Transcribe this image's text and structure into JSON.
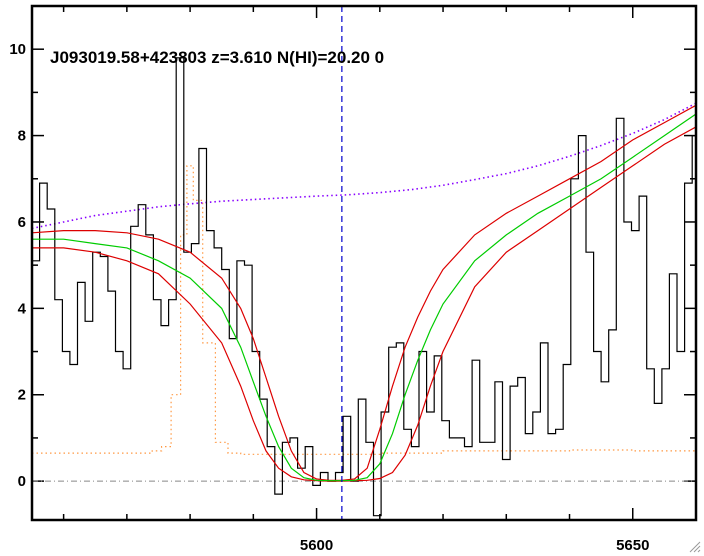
{
  "chart_data": {
    "type": "line",
    "title": "J093019.58+423803 z=3.610 N(HI)=20.20 0",
    "xlabel": "",
    "ylabel": "",
    "xlim": [
      5555,
      5660
    ],
    "ylim": [
      -0.9,
      11.0
    ],
    "x_ticks": [
      5600,
      5650
    ],
    "y_ticks": [
      0,
      2,
      4,
      6,
      8,
      10
    ],
    "vertical_marker_x": 5604,
    "zero_line_y": 0,
    "colors": {
      "flux": "#000000",
      "model": "#00cc00",
      "model_bounds": "#dd0000",
      "continuum": "#8800ff",
      "error": "#ff9944",
      "marker": "#0000cc",
      "zero_line": "#888888"
    },
    "series": [
      {
        "type": "step",
        "x": [
          5555.0,
          5556.2,
          5557.4,
          5558.6,
          5559.8,
          5561.0,
          5562.2,
          5563.4,
          5564.6,
          5565.8,
          5567.0,
          5568.2,
          5569.4,
          5570.6,
          5571.8,
          5573.0,
          5574.2,
          5575.4,
          5576.6,
          5577.8,
          5579.0,
          5580.2,
          5581.4,
          5582.6,
          5583.8,
          5585.0,
          5586.2,
          5587.4,
          5588.6,
          5589.8,
          5591.0,
          5592.2,
          5593.4,
          5594.6,
          5595.8,
          5597.0,
          5598.2,
          5599.4,
          5600.6,
          5601.8,
          5603.0,
          5604.2,
          5605.4,
          5606.6,
          5607.8,
          5609.0,
          5610.2,
          5611.4,
          5612.6,
          5613.8,
          5615.0,
          5616.2,
          5617.4,
          5618.6,
          5619.8,
          5621.0,
          5622.2,
          5623.4,
          5624.6,
          5625.8,
          5627.0,
          5628.2,
          5629.4,
          5630.6,
          5631.8,
          5633.0,
          5634.2,
          5635.4,
          5636.6,
          5637.8,
          5639.0,
          5640.2,
          5641.4,
          5642.6,
          5643.8,
          5645.0,
          5646.2,
          5647.4,
          5648.6,
          5649.8,
          5651.0,
          5652.2,
          5653.4,
          5654.6,
          5655.8,
          5657.0,
          5658.2,
          5659.4
        ],
        "values": [
          5.1,
          6.9,
          6.3,
          4.2,
          3.0,
          2.7,
          4.6,
          3.7,
          5.3,
          5.2,
          4.4,
          3.0,
          2.6,
          5.9,
          6.4,
          5.7,
          4.2,
          3.6,
          4.2,
          9.8,
          5.3,
          5.5,
          7.7,
          5.8,
          5.4,
          4.9,
          3.3,
          5.1,
          5.0,
          3.0,
          1.9,
          0.8,
          -0.3,
          0.9,
          1.0,
          0.3,
          0.8,
          -0.1,
          0.2,
          0.0,
          0.2,
          1.5,
          0.0,
          1.9,
          0.9,
          -0.8,
          1.6,
          3.1,
          3.2,
          1.2,
          0.8,
          3.0,
          1.6,
          2.9,
          1.4,
          1.0,
          1.0,
          0.8,
          2.8,
          0.9,
          0.9,
          2.3,
          0.5,
          2.2,
          2.4,
          1.1,
          1.6,
          3.2,
          1.1,
          1.2,
          2.7,
          7.0,
          8.0,
          5.3,
          3.0,
          2.3,
          3.5,
          8.4,
          6.0,
          5.8,
          6.6,
          2.6,
          1.8,
          2.6,
          4.8,
          3.0,
          6.9,
          8.0
        ]
      },
      {
        "type": "line",
        "x": [
          5555,
          5560,
          5565,
          5570,
          5575,
          5580,
          5585,
          5588,
          5590,
          5592,
          5594,
          5596,
          5598,
          5600,
          5602,
          5604,
          5606,
          5608,
          5610,
          5612,
          5614,
          5616,
          5618,
          5620,
          5625,
          5630,
          5635,
          5640,
          5645,
          5650,
          5655,
          5660
        ],
        "values": [
          5.6,
          5.6,
          5.5,
          5.4,
          5.1,
          4.7,
          4.0,
          3.1,
          2.3,
          1.5,
          0.8,
          0.3,
          0.08,
          0.02,
          0.01,
          0.01,
          0.02,
          0.08,
          0.4,
          1.1,
          2.0,
          2.8,
          3.5,
          4.1,
          5.1,
          5.7,
          6.2,
          6.6,
          7.0,
          7.5,
          8.0,
          8.5
        ]
      },
      {
        "type": "line",
        "x": [
          5555,
          5560,
          5565,
          5570,
          5575,
          5580,
          5585,
          5588,
          5590,
          5592,
          5594,
          5596,
          5598,
          5600,
          5602,
          5604,
          5606,
          5608,
          5610,
          5612,
          5614,
          5616,
          5618,
          5620,
          5625,
          5630,
          5635,
          5640,
          5645,
          5650,
          5655,
          5660
        ],
        "values": [
          5.75,
          5.8,
          5.8,
          5.75,
          5.6,
          5.3,
          4.7,
          4.0,
          3.3,
          2.4,
          1.5,
          0.7,
          0.2,
          0.05,
          0.02,
          0.02,
          0.05,
          0.3,
          1.2,
          2.2,
          3.1,
          3.8,
          4.4,
          4.9,
          5.7,
          6.2,
          6.6,
          7.0,
          7.4,
          7.9,
          8.3,
          8.7
        ]
      },
      {
        "type": "line",
        "x": [
          5555,
          5560,
          5565,
          5570,
          5575,
          5580,
          5585,
          5588,
          5590,
          5592,
          5594,
          5596,
          5598,
          5600,
          5602,
          5604,
          5606,
          5608,
          5610,
          5612,
          5614,
          5616,
          5618,
          5620,
          5625,
          5630,
          5635,
          5640,
          5645,
          5650,
          5655,
          5660
        ],
        "values": [
          5.4,
          5.4,
          5.3,
          5.1,
          4.8,
          4.1,
          3.2,
          2.2,
          1.4,
          0.7,
          0.3,
          0.1,
          0.03,
          0.01,
          0.0,
          0.0,
          0.01,
          0.02,
          0.06,
          0.2,
          0.6,
          1.3,
          2.2,
          3.0,
          4.5,
          5.3,
          5.8,
          6.3,
          6.8,
          7.3,
          7.8,
          8.2
        ]
      },
      {
        "type": "line",
        "x": [
          5555,
          5560,
          5565,
          5570,
          5575,
          5580,
          5585,
          5590,
          5595,
          5600,
          5605,
          5610,
          5615,
          5620,
          5625,
          5630,
          5635,
          5640,
          5645,
          5650,
          5655,
          5660
        ],
        "values": [
          5.85,
          6.0,
          6.15,
          6.25,
          6.35,
          6.42,
          6.48,
          6.52,
          6.56,
          6.6,
          6.63,
          6.68,
          6.75,
          6.85,
          6.98,
          7.12,
          7.3,
          7.52,
          7.77,
          8.05,
          8.37,
          8.75
        ]
      },
      {
        "type": "step",
        "x": [
          5555,
          5570,
          5574,
          5575.5,
          5577,
          5578.5,
          5579.5,
          5580.5,
          5582,
          5584,
          5586,
          5588,
          5600,
          5610,
          5620,
          5630,
          5640,
          5650,
          5660
        ],
        "values": [
          0.65,
          0.65,
          0.7,
          0.8,
          2.0,
          5.7,
          7.3,
          6.5,
          3.2,
          0.9,
          0.65,
          0.62,
          0.62,
          0.65,
          0.7,
          0.7,
          0.72,
          0.7,
          0.65
        ]
      }
    ]
  }
}
